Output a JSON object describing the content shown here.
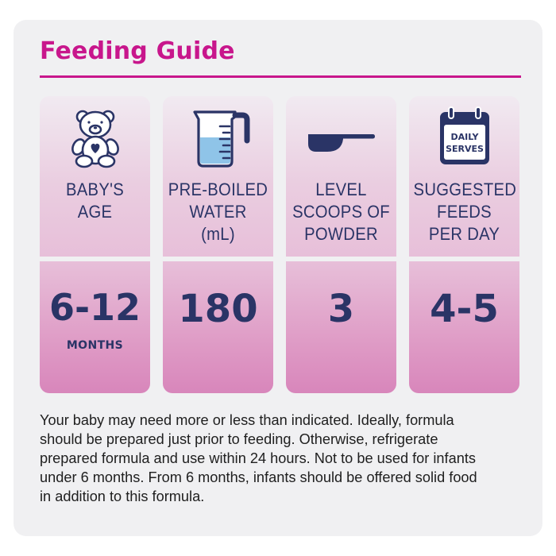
{
  "title": "Feeding Guide",
  "colors": {
    "accent": "#c8168c",
    "navy": "#2a3466",
    "water": "#8fc4e8",
    "card_bg": "#f0f0f2"
  },
  "columns": [
    {
      "icon": "teddy-bear-icon",
      "label_lines": [
        "BABY'S",
        "AGE"
      ],
      "value": "6-12",
      "unit": "MONTHS"
    },
    {
      "icon": "measuring-jug-icon",
      "label_lines": [
        "PRE-BOILED",
        "WATER",
        "(mL)"
      ],
      "value": "180"
    },
    {
      "icon": "scoop-icon",
      "label_lines": [
        "LEVEL",
        "SCOOPS OF",
        "POWDER"
      ],
      "value": "3"
    },
    {
      "icon": "calendar-icon",
      "icon_text": [
        "DAILY",
        "SERVES"
      ],
      "label_lines": [
        "SUGGESTED",
        "FEEDS",
        "PER DAY"
      ],
      "value": "4-5"
    }
  ],
  "note_lines": [
    "Your baby may need more or less than indicated. Ideally, formula",
    "should be prepared just prior to feeding. Otherwise, refrigerate",
    "prepared formula and use within 24 hours. Not to be used for infants",
    "under 6 months. From 6 months, infants should be offered solid food",
    "in addition to this formula."
  ]
}
